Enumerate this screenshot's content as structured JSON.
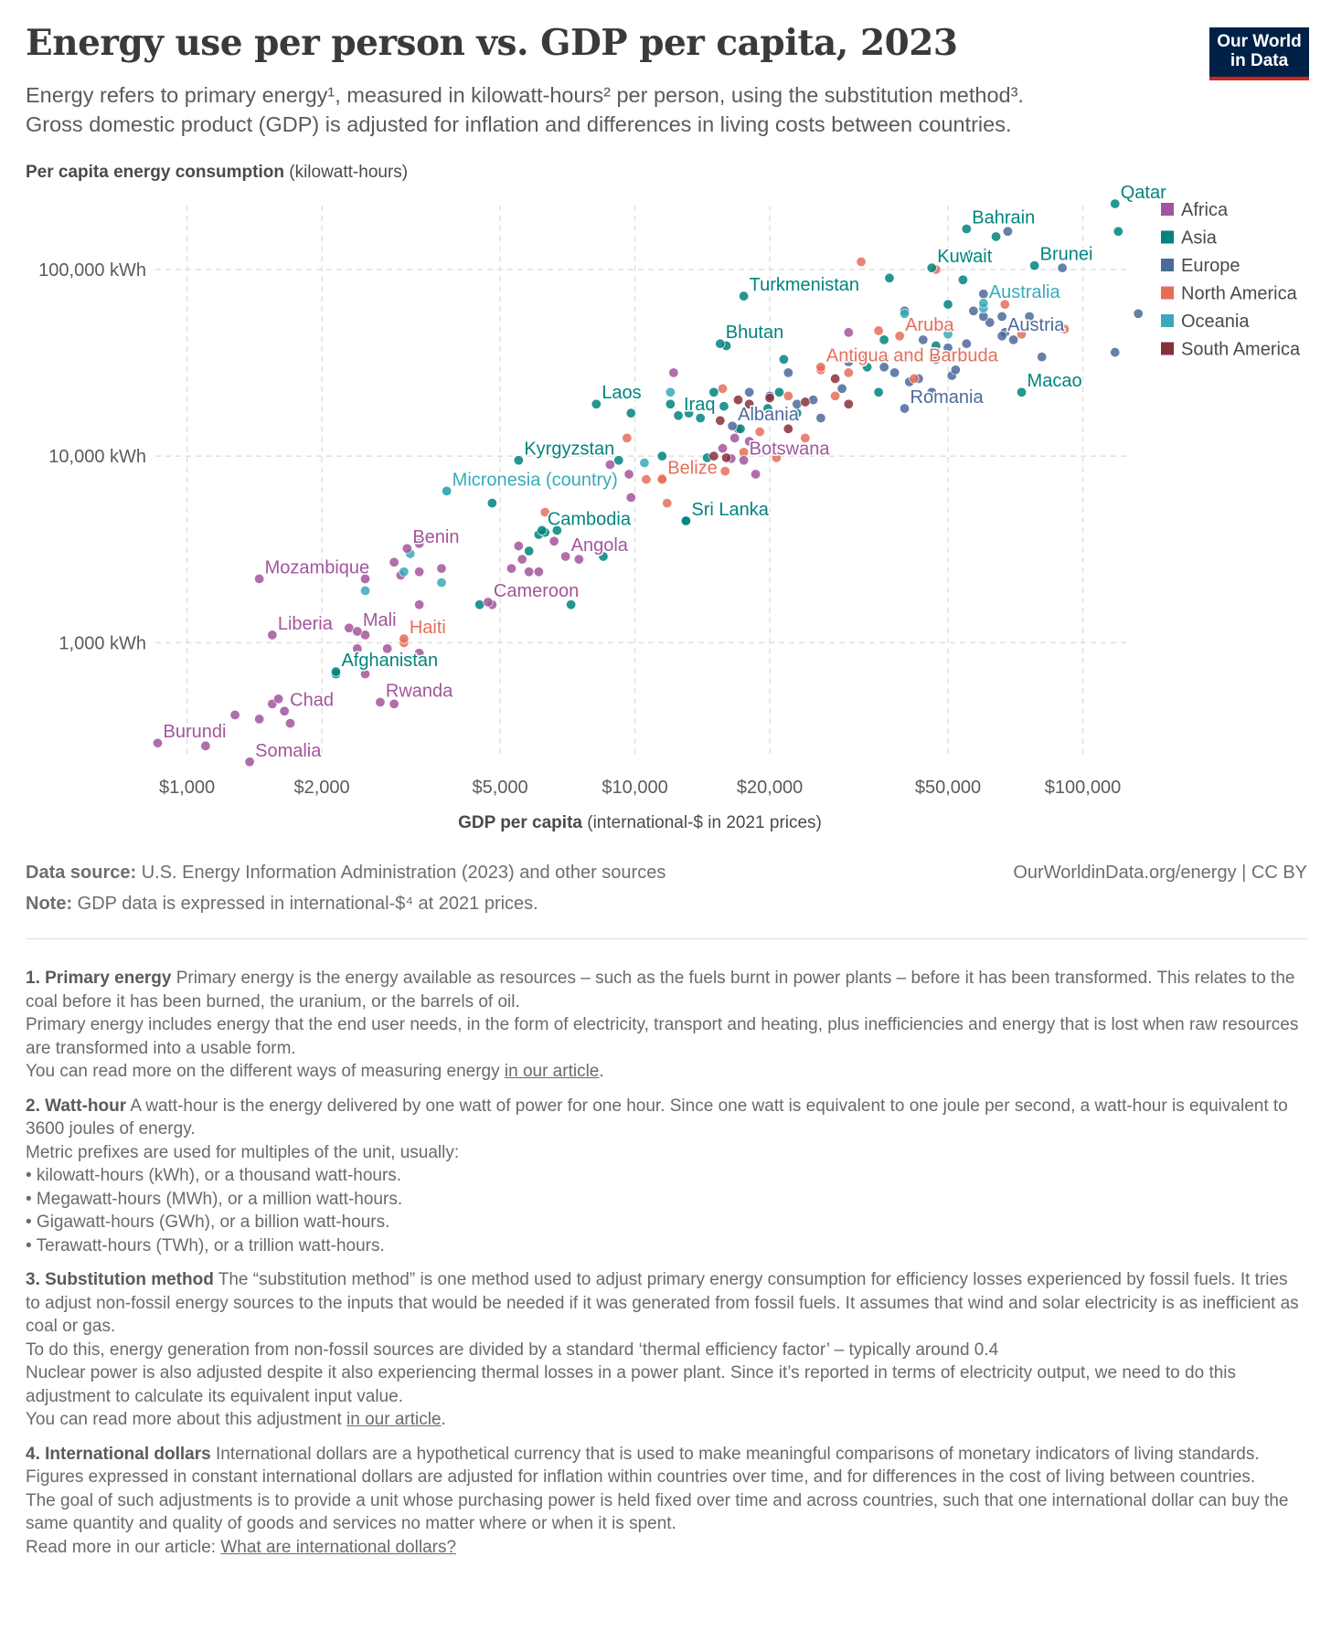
{
  "header": {
    "title": "Energy use per person vs. GDP per capita, 2023",
    "subtitle_line1": "Energy refers to primary energy¹, measured in kilowatt-hours² per person, using the substitution method³.",
    "subtitle_line2": "Gross domestic product (GDP) is adjusted for inflation and differences in living costs between countries.",
    "logo_line1": "Our World",
    "logo_line2": "in Data"
  },
  "axes": {
    "ylabel_bold": "Per capita energy consumption",
    "ylabel_unit": " (kilowatt-hours)",
    "xlabel_bold": "GDP per capita",
    "xlabel_unit": " (international-$ in 2021 prices)"
  },
  "colors": {
    "Africa": "#a2559c",
    "Asia": "#00847e",
    "Europe": "#4c6a9c",
    "North America": "#e56e5a",
    "Oceania": "#38aaba",
    "South America": "#883039",
    "grid": "#dddddd",
    "tick": "#5b5b5b"
  },
  "chart_data": {
    "type": "scatter",
    "xscale": "log",
    "yscale": "log",
    "xlim": [
      850,
      125000
    ],
    "ylim": [
      240,
      220000
    ],
    "grid": true,
    "legend_position": "right",
    "xticks": [
      {
        "value": 1000,
        "label": "$1,000"
      },
      {
        "value": 2000,
        "label": "$2,000"
      },
      {
        "value": 5000,
        "label": "$5,000"
      },
      {
        "value": 10000,
        "label": "$10,000"
      },
      {
        "value": 20000,
        "label": "$20,000"
      },
      {
        "value": 50000,
        "label": "$50,000"
      },
      {
        "value": 100000,
        "label": "$100,000"
      }
    ],
    "yticks": [
      {
        "value": 1000,
        "label": "1,000 kWh"
      },
      {
        "value": 10000,
        "label": "10,000 kWh"
      },
      {
        "value": 100000,
        "label": "100,000 kWh"
      }
    ],
    "legend": [
      "Africa",
      "Asia",
      "Europe",
      "North America",
      "Oceania",
      "South America"
    ],
    "labeled_points": [
      {
        "name": "Bahrain",
        "region": "Asia",
        "x": 55000,
        "y": 165000
      },
      {
        "name": "Qatar",
        "region": "Asia",
        "x": 118000,
        "y": 225000
      },
      {
        "name": "Kuwait",
        "region": "Asia",
        "x": 46000,
        "y": 102000
      },
      {
        "name": "Brunei",
        "region": "Asia",
        "x": 78000,
        "y": 105000
      },
      {
        "name": "Turkmenistan",
        "region": "Asia",
        "x": 17500,
        "y": 72000
      },
      {
        "name": "Australia",
        "region": "Oceania",
        "x": 60000,
        "y": 66000
      },
      {
        "name": "Aruba",
        "region": "North America",
        "x": 39000,
        "y": 44000
      },
      {
        "name": "Austria",
        "region": "Europe",
        "x": 66000,
        "y": 44000
      },
      {
        "name": "Antigua and Barbuda",
        "region": "North America",
        "x": 26000,
        "y": 30000
      },
      {
        "name": "Bhutan",
        "region": "Asia",
        "x": 15500,
        "y": 40000
      },
      {
        "name": "Macao",
        "region": "Asia",
        "x": 73000,
        "y": 22000
      },
      {
        "name": "Romania",
        "region": "Europe",
        "x": 40000,
        "y": 18000
      },
      {
        "name": "Laos",
        "region": "Asia",
        "x": 8200,
        "y": 19000
      },
      {
        "name": "Iraq",
        "region": "Asia",
        "x": 12500,
        "y": 16500
      },
      {
        "name": "Albania",
        "region": "Europe",
        "x": 16500,
        "y": 14500
      },
      {
        "name": "Botswana",
        "region": "Africa",
        "x": 17500,
        "y": 9500
      },
      {
        "name": "Kyrgyzstan",
        "region": "Asia",
        "x": 5500,
        "y": 9500
      },
      {
        "name": "Belize",
        "region": "North America",
        "x": 11500,
        "y": 7500
      },
      {
        "name": "Micronesia (country)",
        "region": "Oceania",
        "x": 3800,
        "y": 6500
      },
      {
        "name": "Sri Lanka",
        "region": "Asia",
        "x": 13000,
        "y": 4500
      },
      {
        "name": "Cambodia",
        "region": "Asia",
        "x": 6200,
        "y": 4000
      },
      {
        "name": "Angola",
        "region": "Africa",
        "x": 7000,
        "y": 2900
      },
      {
        "name": "Benin",
        "region": "Africa",
        "x": 3100,
        "y": 3200
      },
      {
        "name": "Mozambique",
        "region": "Africa",
        "x": 1450,
        "y": 2200
      },
      {
        "name": "Cameroon",
        "region": "Africa",
        "x": 4700,
        "y": 1650
      },
      {
        "name": "Liberia",
        "region": "Africa",
        "x": 1550,
        "y": 1100
      },
      {
        "name": "Mali",
        "region": "Africa",
        "x": 2400,
        "y": 1150
      },
      {
        "name": "Haiti",
        "region": "North America",
        "x": 3050,
        "y": 1050
      },
      {
        "name": "Afghanistan",
        "region": "Asia",
        "x": 2150,
        "y": 700
      },
      {
        "name": "Rwanda",
        "region": "Africa",
        "x": 2700,
        "y": 480
      },
      {
        "name": "Chad",
        "region": "Africa",
        "x": 1650,
        "y": 430
      },
      {
        "name": "Burundi",
        "region": "Africa",
        "x": 860,
        "y": 290
      },
      {
        "name": "Somalia",
        "region": "Africa",
        "x": 1380,
        "y": 230
      }
    ],
    "points": [
      [
        "Africa",
        1100,
        280
      ],
      [
        "Africa",
        1280,
        410
      ],
      [
        "Africa",
        1450,
        390
      ],
      [
        "Africa",
        1550,
        470
      ],
      [
        "Africa",
        1600,
        500
      ],
      [
        "Africa",
        1700,
        370
      ],
      [
        "Africa",
        2400,
        930
      ],
      [
        "Africa",
        2500,
        680
      ],
      [
        "Africa",
        2500,
        1100
      ],
      [
        "Africa",
        2800,
        930
      ],
      [
        "Africa",
        2900,
        470
      ],
      [
        "Africa",
        3300,
        880
      ],
      [
        "Africa",
        3300,
        1600
      ],
      [
        "Africa",
        2500,
        2200
      ],
      [
        "Africa",
        2900,
        2700
      ],
      [
        "Africa",
        3000,
        2300
      ],
      [
        "Africa",
        3300,
        2400
      ],
      [
        "Africa",
        3300,
        3400
      ],
      [
        "Africa",
        3700,
        2500
      ],
      [
        "Africa",
        4800,
        1600
      ],
      [
        "Africa",
        5300,
        2500
      ],
      [
        "Africa",
        5500,
        3300
      ],
      [
        "Africa",
        5600,
        2800
      ],
      [
        "Africa",
        5800,
        2400
      ],
      [
        "Africa",
        6100,
        2400
      ],
      [
        "Africa",
        6600,
        3500
      ],
      [
        "Africa",
        7500,
        2800
      ],
      [
        "Africa",
        9700,
        8000
      ],
      [
        "Africa",
        9800,
        6000
      ],
      [
        "Africa",
        12200,
        28000
      ],
      [
        "Africa",
        15700,
        11000
      ],
      [
        "Africa",
        16400,
        9700
      ],
      [
        "Africa",
        16700,
        12500
      ],
      [
        "Africa",
        17000,
        14000
      ],
      [
        "Africa",
        18600,
        8000
      ],
      [
        "Africa",
        18000,
        12000
      ],
      [
        "Africa",
        30000,
        46000
      ],
      [
        "Africa",
        8800,
        9000
      ],
      [
        "Africa",
        2300,
        1200
      ],
      [
        "Asia",
        2150,
        680
      ],
      [
        "Asia",
        4500,
        1600
      ],
      [
        "Asia",
        4800,
        5600
      ],
      [
        "Asia",
        5800,
        3100
      ],
      [
        "Asia",
        6100,
        3800
      ],
      [
        "Asia",
        6300,
        3900
      ],
      [
        "Asia",
        6700,
        4000
      ],
      [
        "Asia",
        7200,
        1600
      ],
      [
        "Asia",
        8500,
        2900
      ],
      [
        "Asia",
        9200,
        9500
      ],
      [
        "Asia",
        9800,
        17000
      ],
      [
        "Asia",
        11500,
        10000
      ],
      [
        "Asia",
        12000,
        19000
      ],
      [
        "Asia",
        13000,
        4500
      ],
      [
        "Asia",
        13200,
        17000
      ],
      [
        "Asia",
        14000,
        16000
      ],
      [
        "Asia",
        14500,
        9800
      ],
      [
        "Asia",
        15000,
        22000
      ],
      [
        "Asia",
        15800,
        18500
      ],
      [
        "Asia",
        16000,
        39000
      ],
      [
        "Asia",
        17200,
        14000
      ],
      [
        "Asia",
        19800,
        18000
      ],
      [
        "Asia",
        21000,
        22000
      ],
      [
        "Asia",
        21500,
        33000
      ],
      [
        "Asia",
        23000,
        17000
      ],
      [
        "Asia",
        33000,
        30000
      ],
      [
        "Asia",
        35000,
        22000
      ],
      [
        "Asia",
        36000,
        42000
      ],
      [
        "Asia",
        37000,
        90000
      ],
      [
        "Asia",
        50000,
        65000
      ],
      [
        "Asia",
        54000,
        88000
      ],
      [
        "Asia",
        56000,
        120000
      ],
      [
        "Asia",
        64000,
        150000
      ],
      [
        "Asia",
        120000,
        160000
      ],
      [
        "Asia",
        47000,
        39000
      ],
      [
        "Asia",
        36000,
        34000
      ],
      [
        "Europe",
        18000,
        22000
      ],
      [
        "Europe",
        20000,
        21000
      ],
      [
        "Europe",
        22000,
        28000
      ],
      [
        "Europe",
        25000,
        20000
      ],
      [
        "Europe",
        26000,
        16000
      ],
      [
        "Europe",
        30000,
        32000
      ],
      [
        "Europe",
        33000,
        34000
      ],
      [
        "Europe",
        36000,
        30000
      ],
      [
        "Europe",
        40000,
        60000
      ],
      [
        "Europe",
        41000,
        25000
      ],
      [
        "Europe",
        43000,
        26000
      ],
      [
        "Europe",
        46000,
        22000
      ],
      [
        "Europe",
        47000,
        33000
      ],
      [
        "Europe",
        50000,
        38000
      ],
      [
        "Europe",
        51000,
        27000
      ],
      [
        "Europe",
        52000,
        29000
      ],
      [
        "Europe",
        55000,
        40000
      ],
      [
        "Europe",
        57000,
        60000
      ],
      [
        "Europe",
        60000,
        74000
      ],
      [
        "Europe",
        62000,
        52000
      ],
      [
        "Europe",
        66000,
        56000
      ],
      [
        "Europe",
        67000,
        46000
      ],
      [
        "Europe",
        70000,
        42000
      ],
      [
        "Europe",
        76000,
        56000
      ],
      [
        "Europe",
        81000,
        34000
      ],
      [
        "Europe",
        90000,
        102000
      ],
      [
        "Europe",
        118000,
        36000
      ],
      [
        "Europe",
        133000,
        58000
      ],
      [
        "Europe",
        44000,
        42000
      ],
      [
        "Europe",
        38000,
        28000
      ],
      [
        "Europe",
        68000,
        160000
      ],
      [
        "Europe",
        60000,
        56000
      ],
      [
        "Europe",
        29000,
        23000
      ],
      [
        "Europe",
        23000,
        19000
      ],
      [
        "North America",
        9600,
        12500
      ],
      [
        "North America",
        10600,
        7500
      ],
      [
        "North America",
        11500,
        7600
      ],
      [
        "North America",
        11800,
        5600
      ],
      [
        "North America",
        15700,
        23000
      ],
      [
        "North America",
        15900,
        8300
      ],
      [
        "North America",
        17500,
        10500
      ],
      [
        "North America",
        19000,
        13500
      ],
      [
        "North America",
        20700,
        9800
      ],
      [
        "North America",
        22000,
        21000
      ],
      [
        "North America",
        24000,
        12500
      ],
      [
        "North America",
        26000,
        29000
      ],
      [
        "North America",
        28000,
        21000
      ],
      [
        "North America",
        30000,
        28000
      ],
      [
        "North America",
        32000,
        110000
      ],
      [
        "North America",
        42000,
        26000
      ],
      [
        "North America",
        47000,
        100000
      ],
      [
        "North America",
        67000,
        65000
      ],
      [
        "North America",
        73000,
        45000
      ],
      [
        "North America",
        91000,
        48000
      ],
      [
        "North America",
        6300,
        5000
      ],
      [
        "North America",
        3050,
        1000
      ],
      [
        "North America",
        35000,
        47000
      ],
      [
        "Oceania",
        2500,
        1900
      ],
      [
        "Oceania",
        3050,
        2400
      ],
      [
        "Oceania",
        3150,
        3000
      ],
      [
        "Oceania",
        3700,
        2100
      ],
      [
        "Oceania",
        3800,
        6500
      ],
      [
        "Oceania",
        10500,
        9200
      ],
      [
        "Oceania",
        12000,
        22000
      ],
      [
        "Oceania",
        40000,
        58000
      ],
      [
        "Oceania",
        60000,
        62000
      ],
      [
        "Oceania",
        50000,
        45000
      ],
      [
        "South America",
        15000,
        10000
      ],
      [
        "South America",
        15500,
        15500
      ],
      [
        "South America",
        17000,
        20000
      ],
      [
        "South America",
        18000,
        19000
      ],
      [
        "South America",
        20000,
        20500
      ],
      [
        "South America",
        22000,
        14000
      ],
      [
        "South America",
        24000,
        19500
      ],
      [
        "South America",
        28000,
        26000
      ],
      [
        "South America",
        30000,
        19000
      ],
      [
        "South America",
        16000,
        9800
      ]
    ]
  },
  "footer": {
    "source_bold": "Data source:",
    "source_text": " U.S. Energy Information Administration (2023) and other sources",
    "note_bold": "Note:",
    "note_text": " GDP data is expressed in international-$⁴ at 2021 prices.",
    "right": "OurWorldinData.org/energy | CC BY"
  },
  "notes": {
    "n1_bold": "1. Primary energy",
    "n1_l1": " Primary energy is the energy available as resources – such as the fuels burnt in power plants – before it has been transformed. This relates to the coal before it has been burned, the uranium, or the barrels of oil.",
    "n1_l2": "Primary energy includes energy that the end user needs, in the form of electricity, transport and heating, plus inefficiencies and energy that is lost when raw resources are transformed into a usable form.",
    "n1_l3": "You can read more on the different ways of measuring energy ",
    "n1_link": "in our article",
    "n2_bold": "2. Watt-hour",
    "n2_l1": " A watt-hour is the energy delivered by one watt of power for one hour. Since one watt is equivalent to one joule per second, a watt-hour is equivalent to 3600 joules of energy.",
    "n2_l2": "Metric prefixes are used for multiples of the unit, usually:",
    "n2_b1": "• kilowatt-hours (kWh), or a thousand watt-hours.",
    "n2_b2": "• Megawatt-hours (MWh), or a million watt-hours.",
    "n2_b3": "• Gigawatt-hours (GWh), or a billion watt-hours.",
    "n2_b4": "• Terawatt-hours (TWh), or a trillion watt-hours.",
    "n3_bold": "3. Substitution method",
    "n3_l1": " The “substitution method” is one method used to adjust primary energy consumption for efficiency losses experienced by fossil fuels. It tries to adjust non-fossil energy sources to the inputs that would be needed if it was generated from fossil fuels. It assumes that wind and solar electricity is as inefficient as coal or gas.",
    "n3_l2": "To do this, energy generation from non-fossil sources are divided by a standard ‘thermal efficiency factor’ – typically around 0.4",
    "n3_l3": "Nuclear power is also adjusted despite it also experiencing thermal losses in a power plant. Since it’s reported in terms of electricity output, we need to do this adjustment to calculate its equivalent input value.",
    "n3_l4": "You can read more about this adjustment ",
    "n3_link": "in our article",
    "n4_bold": "4. International dollars",
    "n4_l1": " International dollars are a hypothetical currency that is used to make meaningful comparisons of monetary indicators of living standards.",
    "n4_l2": "Figures expressed in constant international dollars are adjusted for inflation within countries over time, and for differences in the cost of living between countries.",
    "n4_l3": "The goal of such adjustments is to provide a unit whose purchasing power is held fixed over time and across countries, such that one international dollar can buy the same quantity and quality of goods and services no matter where or when it is spent.",
    "n4_l4": "Read more in our article: ",
    "n4_link": "What are international dollars?"
  }
}
